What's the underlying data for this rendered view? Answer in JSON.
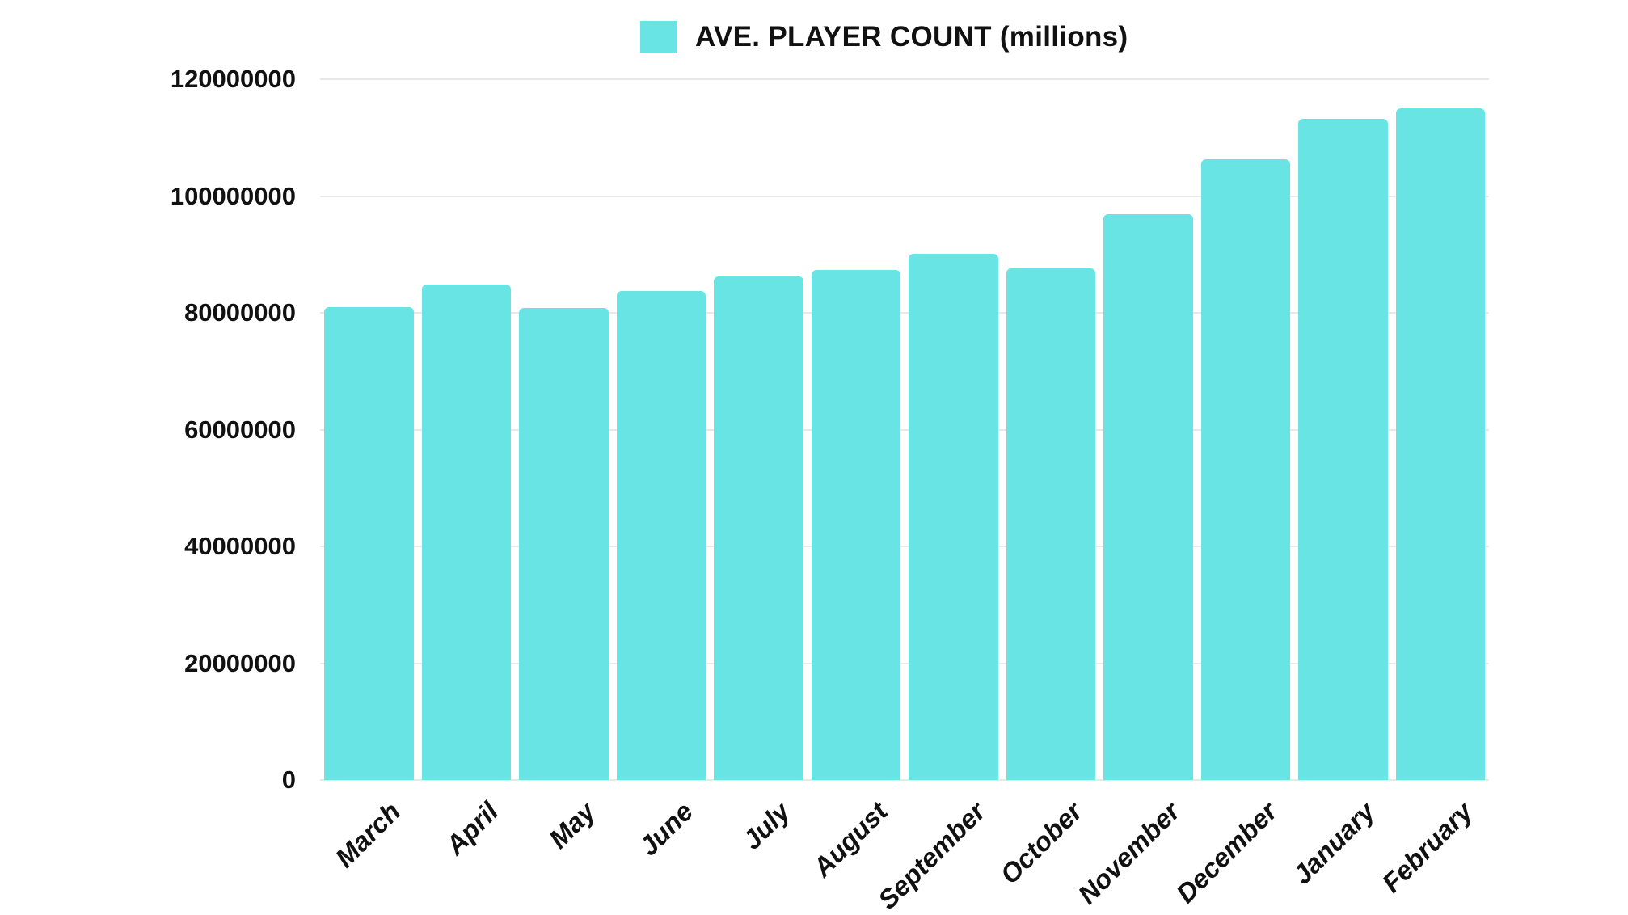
{
  "legend": {
    "label": "AVE. PLAYER COUNT (millions)",
    "color": "#69e4e4"
  },
  "chart_data": {
    "type": "bar",
    "title": "",
    "xlabel": "",
    "ylabel": "",
    "ylim": [
      0,
      120000000
    ],
    "grid": true,
    "legend_position": "top",
    "yticks": [
      "0",
      "20000000",
      "40000000",
      "60000000",
      "80000000",
      "100000000",
      "120000000"
    ],
    "categories": [
      "March",
      "April",
      "May",
      "June",
      "July",
      "August",
      "September",
      "October",
      "November",
      "December",
      "January",
      "February"
    ],
    "series": [
      {
        "name": "AVE. PLAYER COUNT (millions)",
        "color": "#69e4e4",
        "values": [
          81000000,
          84800000,
          80900000,
          83700000,
          86200000,
          87300000,
          90100000,
          87600000,
          96900000,
          106300000,
          113200000,
          115000000
        ]
      }
    ]
  }
}
